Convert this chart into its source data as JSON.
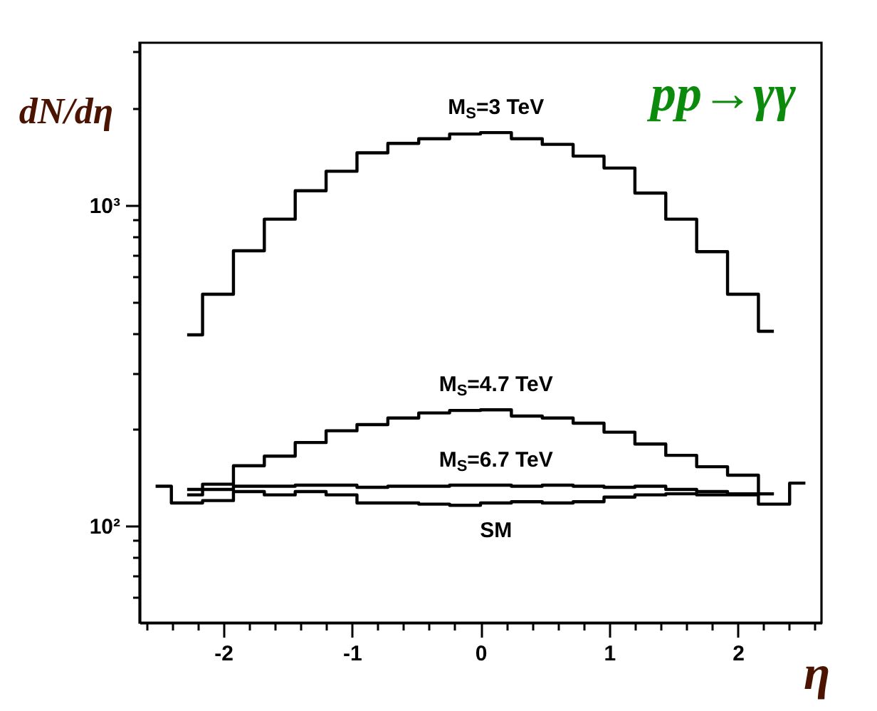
{
  "chart_data": {
    "type": "step",
    "title": "pp→γγ",
    "xlabel": "η",
    "ylabel": "dN/dη",
    "x": [
      -2.28,
      -2.04,
      -1.8,
      -1.56,
      -1.32,
      -1.08,
      -0.84,
      -0.6,
      -0.36,
      -0.12,
      0.12,
      0.36,
      0.6,
      0.84,
      1.08,
      1.32,
      1.56,
      1.8,
      2.04,
      2.28
    ],
    "series": [
      {
        "name": "M$_{S}$=3 TeV",
        "color": "#000000",
        "values": [
          394,
          527,
          720,
          903,
          1107,
          1273,
          1453,
          1555,
          1608,
          1663,
          1680,
          1608,
          1544,
          1419,
          1303,
          1089,
          903,
          715,
          527,
          404
        ]
      },
      {
        "name": "M$_{S}$=4.7 TeV",
        "color": "#000000",
        "values": [
          130,
          135,
          154,
          165,
          182,
          198,
          207,
          217,
          225,
          229,
          230,
          220,
          217,
          209,
          196,
          180,
          166,
          153,
          144,
          126
        ]
      },
      {
        "name": "M$_{S}$=6.7 TeV",
        "color": "#000000",
        "values": [
          125,
          130,
          133,
          133,
          134,
          134,
          132,
          133,
          133,
          134,
          134,
          133,
          134,
          133,
          132,
          133,
          130,
          128,
          126,
          126
        ]
      },
      {
        "name": "SM",
        "color": "#000000",
        "x": [
          -2.525,
          -2.28,
          -2.04,
          -1.8,
          -1.56,
          -1.32,
          -1.08,
          -0.84,
          -0.6,
          -0.36,
          -0.12,
          0.12,
          0.36,
          0.6,
          0.84,
          1.08,
          1.32,
          1.56,
          1.8,
          2.04,
          2.28,
          2.525
        ],
        "values": [
          133,
          118,
          120,
          128,
          125,
          128,
          125,
          118,
          118,
          117,
          116,
          118,
          119,
          118,
          119,
          123,
          125,
          126,
          125,
          125,
          117,
          136
        ]
      }
    ],
    "xlim": [
      -2.65,
      2.65
    ],
    "xticks": [
      {
        "value": -2.6,
        "label": null
      },
      {
        "value": -2.4,
        "label": null
      },
      {
        "value": -2.2,
        "label": null
      },
      -2,
      {
        "value": -1.8,
        "label": null
      },
      {
        "value": -1.6,
        "label": null
      },
      {
        "value": -1.4,
        "label": null
      },
      {
        "value": -1.2,
        "label": null
      },
      -1,
      {
        "value": -0.8,
        "label": null
      },
      {
        "value": -0.6,
        "label": null
      },
      {
        "value": -0.4,
        "label": null
      },
      {
        "value": -0.2,
        "label": null
      },
      0,
      {
        "value": 0.2,
        "label": null
      },
      {
        "value": 0.4,
        "label": null
      },
      {
        "value": 0.6,
        "label": null
      },
      {
        "value": 0.8,
        "label": null
      },
      1,
      {
        "value": 1.2,
        "label": null
      },
      {
        "value": 1.4,
        "label": null
      },
      {
        "value": 1.6,
        "label": null
      },
      {
        "value": 1.8,
        "label": null
      },
      2,
      {
        "value": 2.2,
        "label": null
      },
      {
        "value": 2.4,
        "label": null
      },
      {
        "value": 2.6,
        "label": null
      }
    ],
    "ylim": [
      50,
      3200
    ],
    "yticks": [
      {
        "value": 60,
        "label": null
      },
      {
        "value": 70,
        "label": null
      },
      {
        "value": 80,
        "label": null
      },
      {
        "value": 90,
        "label": null
      },
      {
        "value": 100,
        "label": "10²"
      },
      {
        "value": 200,
        "label": null
      },
      {
        "value": 300,
        "label": null
      },
      {
        "value": 400,
        "label": null
      },
      {
        "value": 500,
        "label": null
      },
      {
        "value": 600,
        "label": null
      },
      {
        "value": 700,
        "label": null
      },
      {
        "value": 800,
        "label": null
      },
      {
        "value": 900,
        "label": null
      },
      {
        "value": 1000,
        "label": "10³"
      },
      {
        "value": 2000,
        "label": null
      },
      {
        "value": 3000,
        "label": null
      }
    ],
    "log": "y",
    "grid": false,
    "legend": false
  }
}
